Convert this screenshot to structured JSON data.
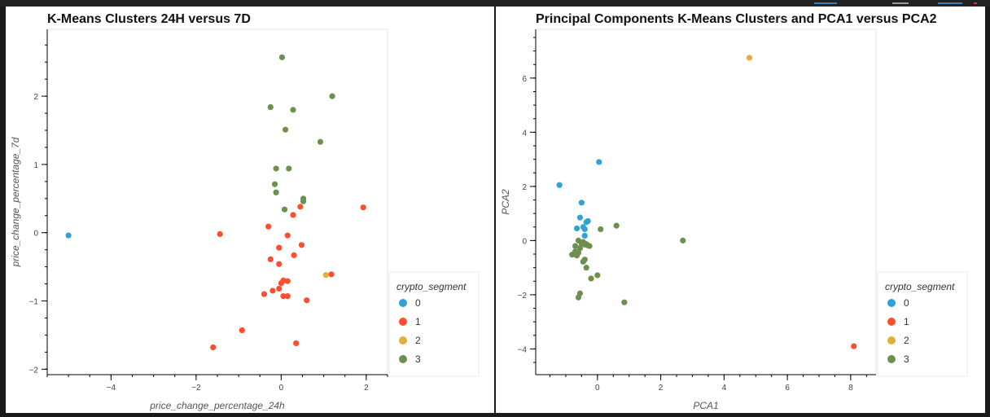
{
  "colors": {
    "0": "#30a2da",
    "1": "#fc4f30",
    "2": "#e5ae38",
    "3": "#6d904f"
  },
  "chart_data": [
    {
      "type": "scatter",
      "title": "K-Means Clusters 24H versus 7D",
      "xlabel": "price_change_percentage_24h",
      "ylabel": "price_change_percentage_7d",
      "xlim": [
        -5.5,
        2.5
      ],
      "ylim": [
        -2.08,
        2.98
      ],
      "xticks": [
        -4,
        -2,
        0,
        2
      ],
      "yticks": [
        -2,
        -1,
        0,
        1,
        2
      ],
      "legend": {
        "title": "crypto_segment",
        "position": "bottom-right",
        "entries": [
          "0",
          "1",
          "2",
          "3"
        ]
      },
      "series": [
        {
          "name": "0",
          "points": [
            [
              -5.0,
              -0.04
            ]
          ]
        },
        {
          "name": "1",
          "points": [
            [
              -1.44,
              -0.02
            ],
            [
              -0.3,
              0.09
            ],
            [
              0.45,
              0.38
            ],
            [
              0.28,
              0.26
            ],
            [
              1.93,
              0.37
            ],
            [
              0.15,
              -0.04
            ],
            [
              -0.05,
              -0.22
            ],
            [
              0.48,
              -0.18
            ],
            [
              -0.25,
              -0.39
            ],
            [
              0.3,
              -0.33
            ],
            [
              -0.05,
              -0.46
            ],
            [
              1.18,
              -0.61
            ],
            [
              0.05,
              -0.7
            ],
            [
              0.15,
              -0.71
            ],
            [
              0.0,
              -0.74
            ],
            [
              -0.05,
              -0.82
            ],
            [
              -0.2,
              -0.85
            ],
            [
              -0.4,
              -0.9
            ],
            [
              0.05,
              -0.93
            ],
            [
              0.15,
              -0.93
            ],
            [
              0.6,
              -0.99
            ],
            [
              -0.92,
              -1.43
            ],
            [
              -1.6,
              -1.68
            ],
            [
              0.35,
              -1.62
            ]
          ]
        },
        {
          "name": "2",
          "points": [
            [
              1.05,
              -0.62
            ]
          ]
        },
        {
          "name": "3",
          "points": [
            [
              0.02,
              2.57
            ],
            [
              -0.25,
              1.84
            ],
            [
              0.28,
              1.8
            ],
            [
              1.2,
              2.0
            ],
            [
              0.1,
              1.51
            ],
            [
              0.92,
              1.33
            ],
            [
              -0.12,
              0.94
            ],
            [
              0.18,
              0.94
            ],
            [
              -0.15,
              0.71
            ],
            [
              -0.12,
              0.59
            ],
            [
              0.52,
              0.5
            ],
            [
              0.52,
              0.46
            ],
            [
              0.08,
              0.34
            ]
          ]
        }
      ]
    },
    {
      "type": "scatter",
      "title": "Principal Components K-Means Clusters and PCA1 versus PCA2",
      "xlabel": "PCA1",
      "ylabel": "PCA2",
      "xlim": [
        -1.95,
        8.8
      ],
      "ylim": [
        -4.95,
        7.8
      ],
      "xticks": [
        0,
        2,
        4,
        6,
        8
      ],
      "yticks": [
        -4,
        -2,
        0,
        2,
        4,
        6
      ],
      "legend": {
        "title": "crypto_segment",
        "position": "bottom-right",
        "entries": [
          "0",
          "1",
          "2",
          "3"
        ]
      },
      "series": [
        {
          "name": "0",
          "points": [
            [
              0.05,
              2.9
            ],
            [
              -1.2,
              2.05
            ],
            [
              -0.5,
              1.4
            ],
            [
              -0.55,
              0.85
            ],
            [
              -0.3,
              0.72
            ],
            [
              -0.35,
              0.68
            ],
            [
              -0.65,
              0.45
            ],
            [
              -0.45,
              0.5
            ],
            [
              -0.4,
              0.42
            ],
            [
              -0.4,
              0.18
            ]
          ]
        },
        {
          "name": "1",
          "points": [
            [
              8.1,
              -3.9
            ]
          ]
        },
        {
          "name": "2",
          "points": [
            [
              4.8,
              6.75
            ]
          ]
        },
        {
          "name": "3",
          "points": [
            [
              0.6,
              0.55
            ],
            [
              0.1,
              0.42
            ],
            [
              2.7,
              0.0
            ],
            [
              -0.6,
              0.0
            ],
            [
              -0.45,
              -0.05
            ],
            [
              -0.7,
              -0.2
            ],
            [
              -0.5,
              -0.12
            ],
            [
              -0.4,
              -0.15
            ],
            [
              -0.35,
              -0.13
            ],
            [
              -0.3,
              -0.18
            ],
            [
              -0.25,
              -0.2
            ],
            [
              -0.55,
              -0.28
            ],
            [
              -0.7,
              -0.4
            ],
            [
              -0.6,
              -0.45
            ],
            [
              -0.75,
              -0.5
            ],
            [
              -0.8,
              -0.52
            ],
            [
              -0.65,
              -0.55
            ],
            [
              -0.4,
              -0.7
            ],
            [
              -0.45,
              -0.78
            ],
            [
              -0.35,
              -1.0
            ],
            [
              0.0,
              -1.28
            ],
            [
              -0.2,
              -1.4
            ],
            [
              -0.55,
              -1.95
            ],
            [
              0.85,
              -2.28
            ],
            [
              -0.6,
              -2.1
            ]
          ]
        }
      ]
    }
  ]
}
